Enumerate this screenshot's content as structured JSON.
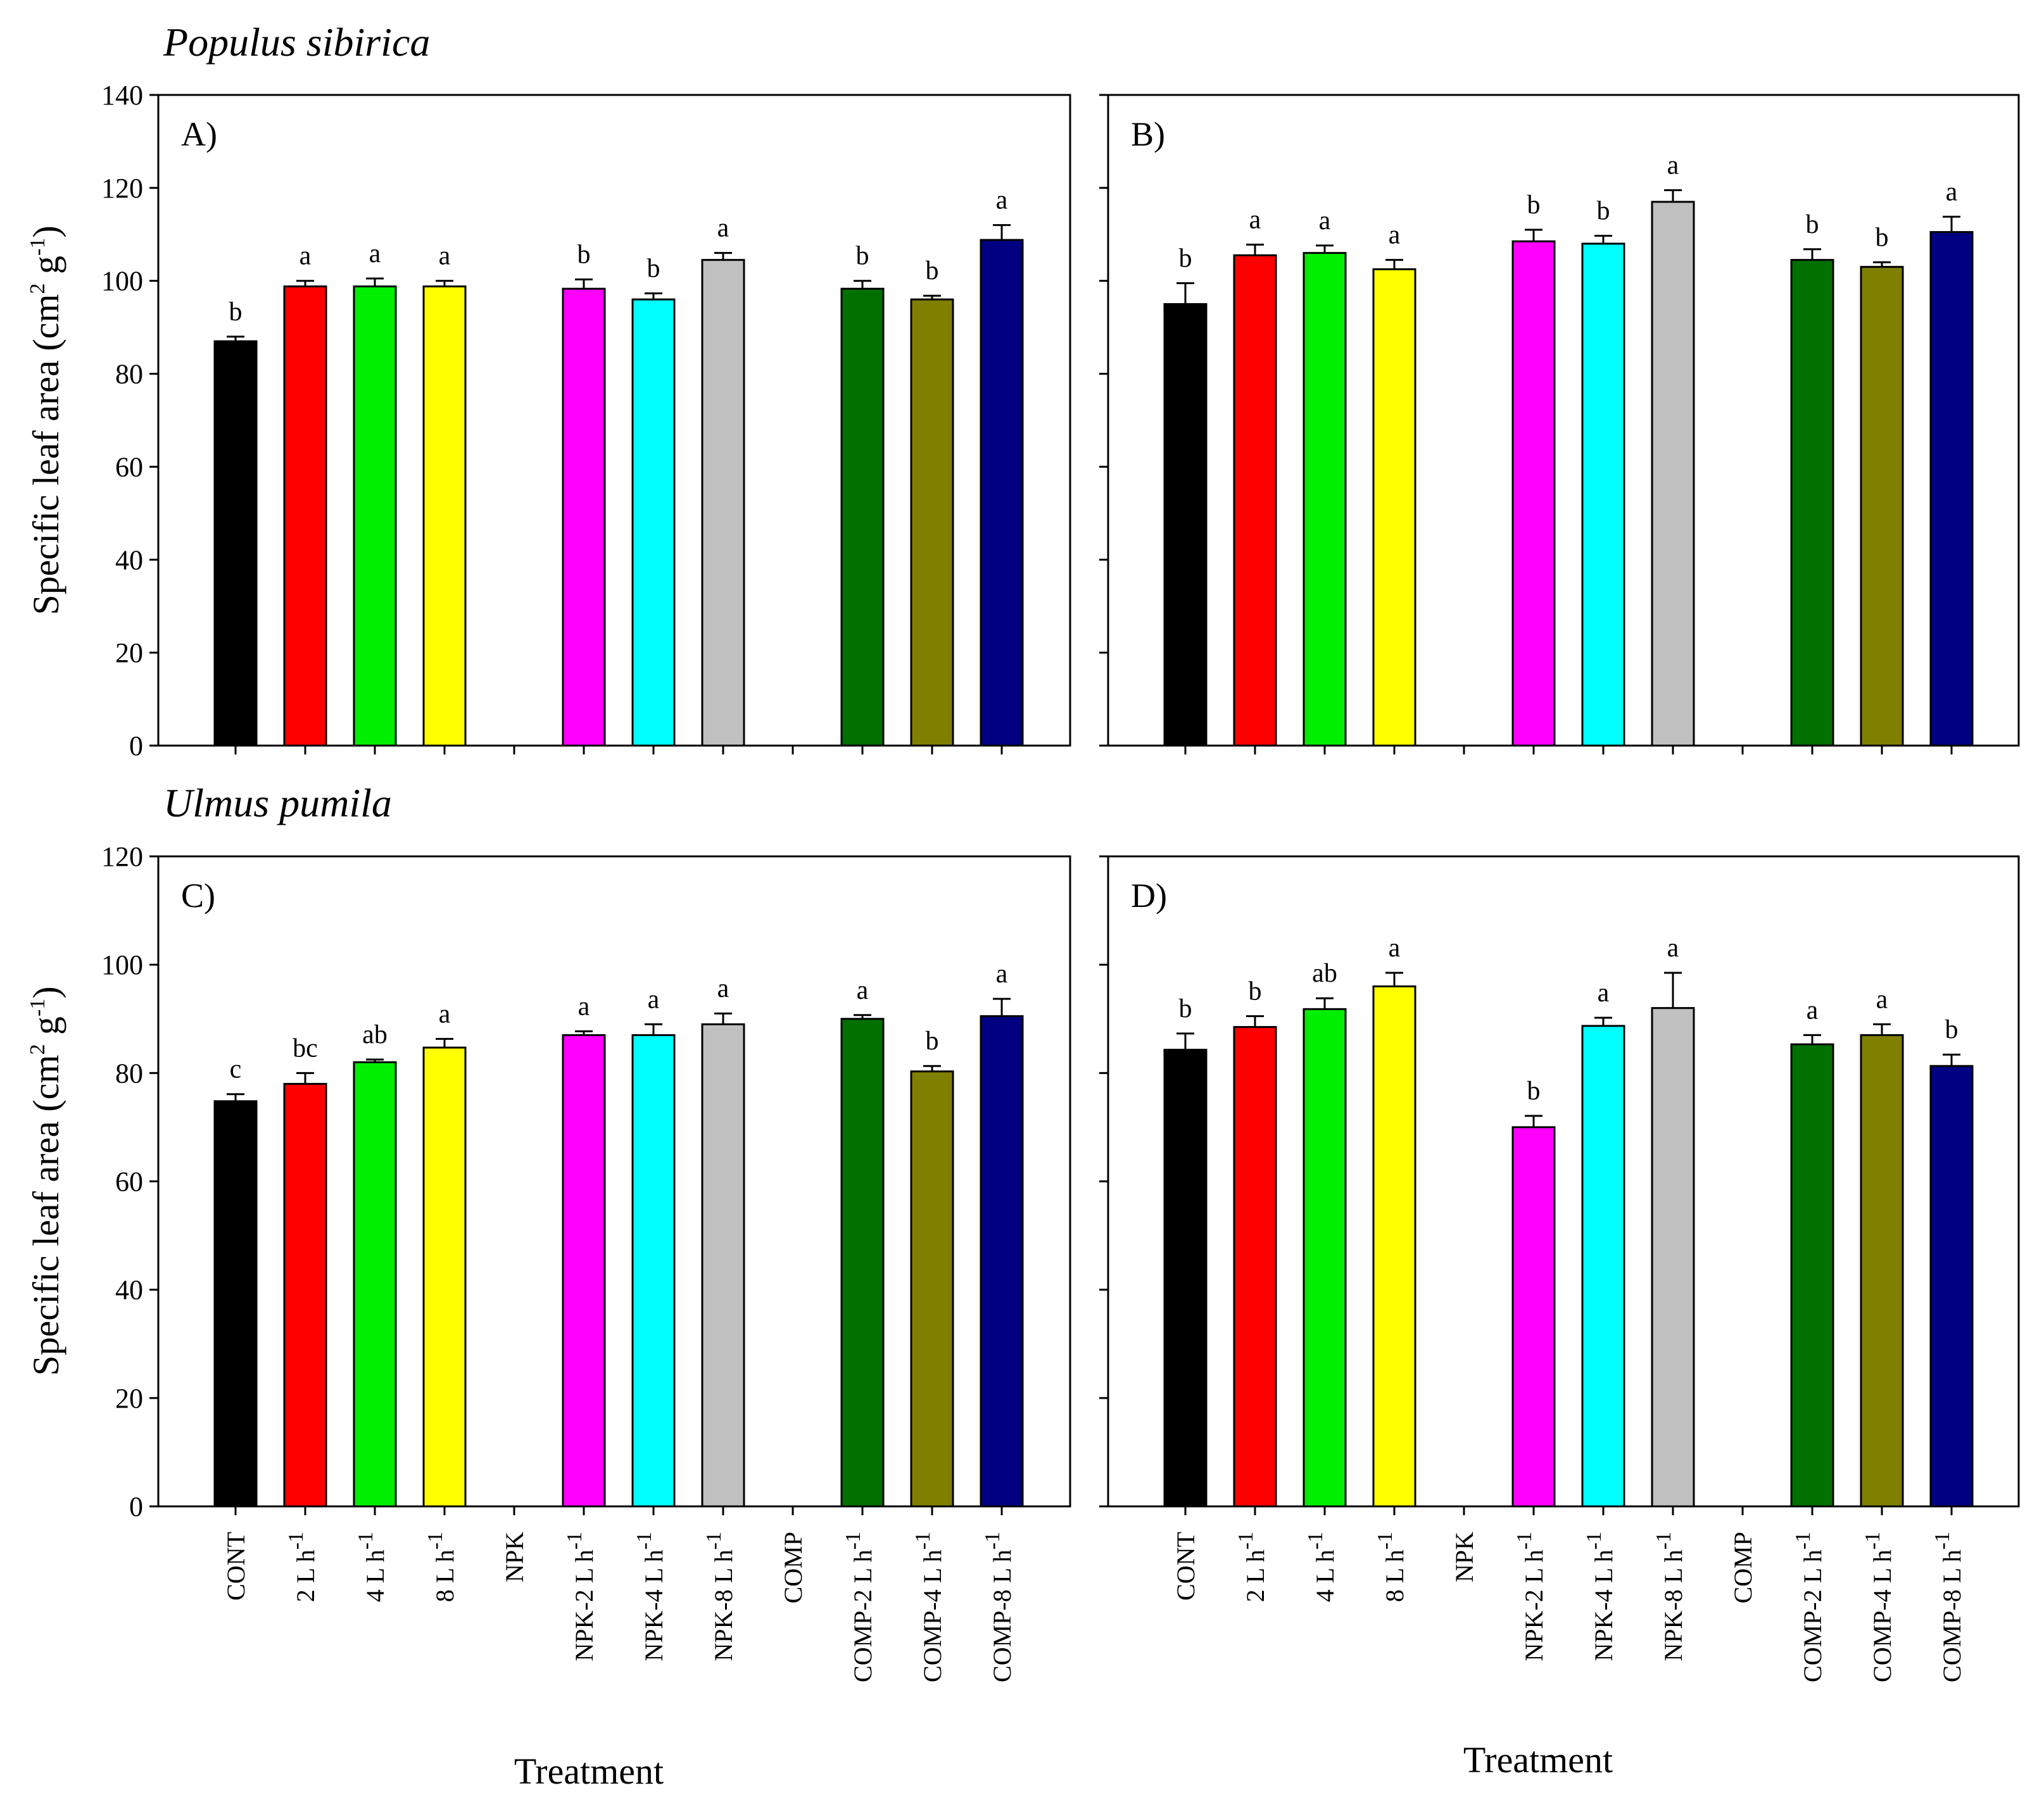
{
  "colors": {
    "CONT": "#000000",
    "2 L h-1": "#ff0000",
    "4 L h-1": "#00ee00",
    "8 L h-1": "#ffff00",
    "NPK-2 L h-1": "#ff00ff",
    "NPK-4 L h-1": "#00ffff",
    "NPK-8 L h-1": "#c0c0c0",
    "COMP-2 L h-1": "#007000",
    "COMP-4 L h-1": "#808000",
    "COMP-8 L h-1": "#000080"
  },
  "chart_data": [
    {
      "type": "bar",
      "panel": "A)",
      "species_title": "Populus sibirica",
      "ylabel": "Specific leaf area (cm",
      "ylabel_sup1": "2",
      "ylabel_mid": " g",
      "ylabel_sup2": "-1",
      "ylabel_end": ")",
      "ylim": [
        0,
        140
      ],
      "yticks": [
        0,
        20,
        40,
        60,
        80,
        100,
        120,
        140
      ],
      "categories": [
        "CONT",
        "2 L h",
        "4 L h",
        "8 L h",
        "NPK",
        "NPK-2 L h",
        "NPK-4 L h",
        "NPK-8 L h",
        "COMP",
        "COMP-2 L h",
        "COMP-4 L h",
        "COMP-8 L h"
      ],
      "category_sup": [
        "",
        "-1",
        "-1",
        "-1",
        "",
        "-1",
        "-1",
        "-1",
        "",
        "-1",
        "-1",
        "-1"
      ],
      "values": [
        87,
        98.8,
        98.8,
        98.8,
        null,
        98.3,
        96,
        104.5,
        null,
        98.3,
        96,
        108.8
      ],
      "errors": [
        1,
        1.2,
        1.7,
        1.2,
        null,
        2,
        1.3,
        1.5,
        null,
        1.7,
        0.8,
        3.2
      ],
      "letters": [
        "b",
        "a",
        "a",
        "a",
        "",
        "b",
        "b",
        "a",
        "",
        "b",
        "b",
        "a"
      ]
    },
    {
      "type": "bar",
      "panel": "B)",
      "ylim": [
        0,
        140
      ],
      "yticks": [
        0,
        20,
        40,
        60,
        80,
        100,
        120,
        140
      ],
      "categories": [
        "CONT",
        "2 L h",
        "4 L h",
        "8 L h",
        "NPK",
        "NPK-2 L h",
        "NPK-4 L h",
        "NPK-8 L h",
        "COMP",
        "COMP-2 L h",
        "COMP-4 L h",
        "COMP-8 L h"
      ],
      "values": [
        95,
        105.5,
        106,
        102.5,
        null,
        108.5,
        108,
        117,
        null,
        104.5,
        103,
        110.5
      ],
      "errors": [
        4.5,
        2.3,
        1.6,
        2,
        null,
        2.5,
        1.7,
        2.5,
        null,
        2.3,
        1,
        3.3
      ],
      "letters": [
        "b",
        "a",
        "a",
        "a",
        "",
        "b",
        "b",
        "a",
        "",
        "b",
        "b",
        "a"
      ]
    },
    {
      "type": "bar",
      "panel": "C)",
      "species_title": "Ulmus pumila",
      "ylabel": "Specific leaf area (cm",
      "ylabel_sup1": "2",
      "ylabel_mid": " g",
      "ylabel_sup2": "-1",
      "ylabel_end": ")",
      "xlabel": "Treatment",
      "ylim": [
        0,
        120
      ],
      "yticks": [
        0,
        20,
        40,
        60,
        80,
        100,
        120
      ],
      "categories": [
        "CONT",
        "2 L h",
        "4 L h",
        "8 L h",
        "NPK",
        "NPK-2 L h",
        "NPK-4 L h",
        "NPK-8 L h",
        "COMP",
        "COMP-2 L h",
        "COMP-4 L h",
        "COMP-8 L h"
      ],
      "category_sup": [
        "",
        "-1",
        "-1",
        "-1",
        "",
        "-1",
        "-1",
        "-1",
        "",
        "-1",
        "-1",
        "-1"
      ],
      "values": [
        74.8,
        78,
        82,
        84.7,
        null,
        87,
        87,
        89,
        null,
        90,
        80.3,
        90.5
      ],
      "errors": [
        1.3,
        2,
        0.5,
        1.6,
        null,
        0.7,
        2,
        2,
        null,
        0.7,
        1,
        3.2
      ],
      "letters": [
        "c",
        "bc",
        "ab",
        "a",
        "",
        "a",
        "a",
        "a",
        "",
        "a",
        "b",
        "a"
      ]
    },
    {
      "type": "bar",
      "panel": "D)",
      "xlabel": "Treatment",
      "ylim": [
        0,
        120
      ],
      "yticks": [
        0,
        20,
        40,
        60,
        80,
        100,
        120
      ],
      "categories": [
        "CONT",
        "2 L h",
        "4 L h",
        "8 L h",
        "NPK",
        "NPK-2 L h",
        "NPK-4 L h",
        "NPK-8 L h",
        "COMP",
        "COMP-2 L h",
        "COMP-4 L h",
        "COMP-8 L h"
      ],
      "category_sup": [
        "",
        "-1",
        "-1",
        "-1",
        "",
        "-1",
        "-1",
        "-1",
        "",
        "-1",
        "-1",
        "-1"
      ],
      "values": [
        84.3,
        88.5,
        91.8,
        96,
        null,
        70,
        88.7,
        92,
        null,
        85.3,
        87,
        81.3
      ],
      "errors": [
        3,
        2,
        2,
        2.5,
        null,
        2.1,
        1.5,
        6.5,
        null,
        1.7,
        2,
        2.1
      ],
      "letters": [
        "b",
        "b",
        "ab",
        "a",
        "",
        "b",
        "a",
        "a",
        "",
        "a",
        "a",
        "b"
      ]
    }
  ]
}
